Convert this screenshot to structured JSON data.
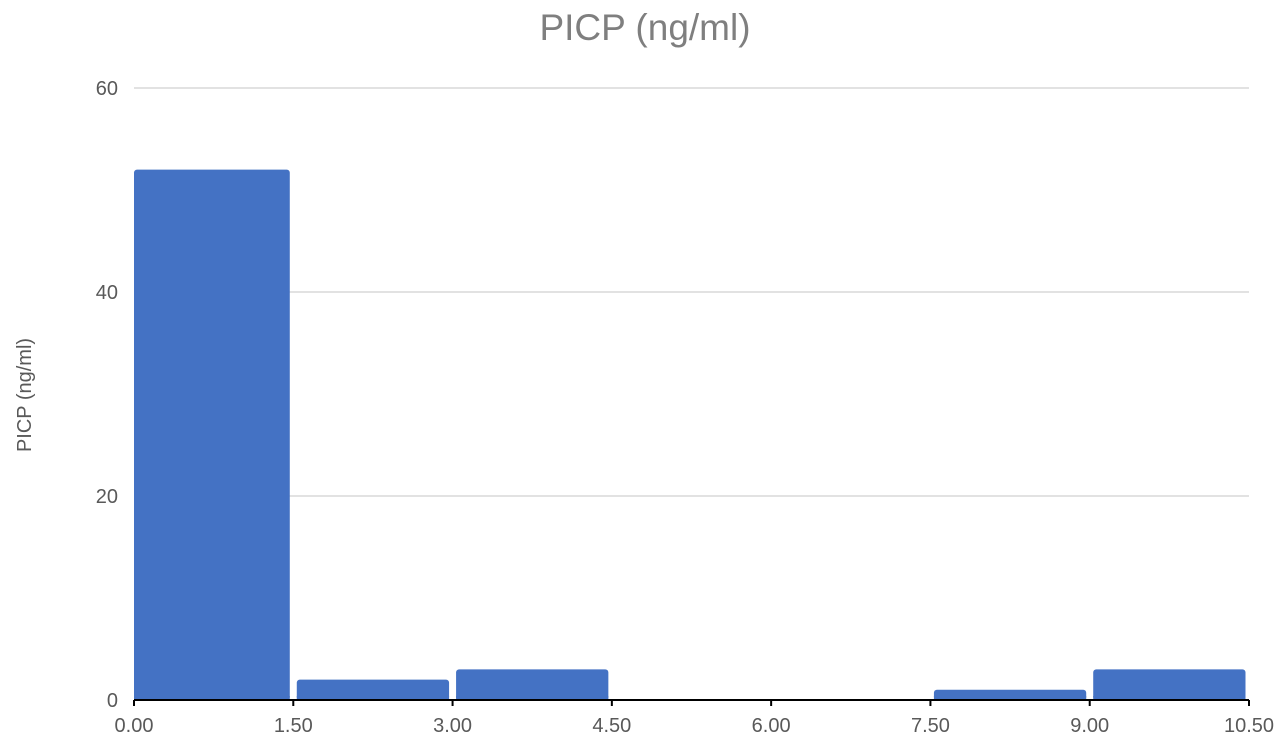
{
  "chart_data": {
    "type": "bar",
    "title": "PICP (ng/ml)",
    "xlabel": "",
    "ylabel": "PICP (ng/ml)",
    "x_tick_labels": [
      "0.00",
      "1.50",
      "3.00",
      "4.50",
      "6.00",
      "7.50",
      "9.00",
      "10.50"
    ],
    "y_tick_labels": [
      "0",
      "20",
      "40",
      "60"
    ],
    "bins": [
      {
        "start": 0.0,
        "end": 1.5,
        "value": 52
      },
      {
        "start": 1.5,
        "end": 3.0,
        "value": 2
      },
      {
        "start": 3.0,
        "end": 4.5,
        "value": 3
      },
      {
        "start": 4.5,
        "end": 6.0,
        "value": 0
      },
      {
        "start": 6.0,
        "end": 7.5,
        "value": 0
      },
      {
        "start": 7.5,
        "end": 9.0,
        "value": 1
      },
      {
        "start": 9.0,
        "end": 10.5,
        "value": 3
      }
    ],
    "xlim": [
      0,
      10.5
    ],
    "ylim": [
      0,
      60
    ],
    "y_ticks": [
      0,
      20,
      40,
      60
    ],
    "grid": true,
    "legend": "none",
    "colors": {
      "bar": "#4472c4",
      "grid": "#d9d9d9",
      "title": "#7f7f7f",
      "labels": "#595959"
    }
  }
}
